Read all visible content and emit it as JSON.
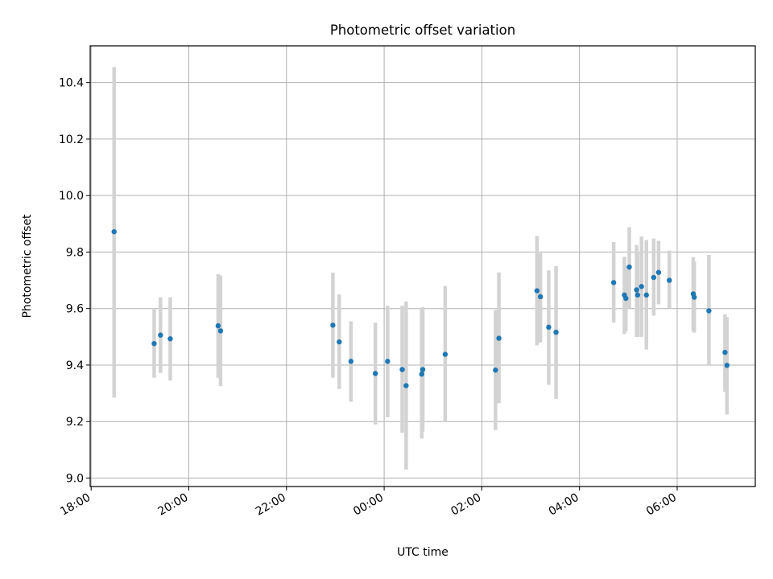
{
  "chart_data": {
    "type": "scatter",
    "title": "Photometric offset variation",
    "xlabel": "UTC time",
    "ylabel": "Photometric offset",
    "x_unit": "hours since 18:00 UTC",
    "xlim": [
      -0.02,
      13.6
    ],
    "ylim": [
      8.97,
      10.53
    ],
    "grid": true,
    "x_ticks": [
      {
        "v": 0,
        "label": "18:00"
      },
      {
        "v": 2,
        "label": "20:00"
      },
      {
        "v": 4,
        "label": "22:00"
      },
      {
        "v": 6,
        "label": "00:00"
      },
      {
        "v": 8,
        "label": "02:00"
      },
      {
        "v": 10,
        "label": "04:00"
      },
      {
        "v": 12,
        "label": "06:00"
      }
    ],
    "y_ticks": [
      {
        "v": 9.0,
        "label": "9.0"
      },
      {
        "v": 9.2,
        "label": "9.2"
      },
      {
        "v": 9.4,
        "label": "9.4"
      },
      {
        "v": 9.6,
        "label": "9.6"
      },
      {
        "v": 9.8,
        "label": "9.8"
      },
      {
        "v": 10.0,
        "label": "10.0"
      },
      {
        "v": 10.2,
        "label": "10.2"
      },
      {
        "v": 10.4,
        "label": "10.4"
      }
    ],
    "points": [
      {
        "time": "18:28",
        "x": 0.47,
        "y": 9.872,
        "lo": 9.285,
        "hi": 10.455
      },
      {
        "time": "19:18",
        "x": 1.29,
        "y": 9.476,
        "lo": 9.355,
        "hi": 9.597
      },
      {
        "time": "19:25",
        "x": 1.42,
        "y": 9.506,
        "lo": 9.372,
        "hi": 9.64
      },
      {
        "time": "19:37",
        "x": 1.62,
        "y": 9.493,
        "lo": 9.345,
        "hi": 9.64
      },
      {
        "time": "20:36",
        "x": 2.6,
        "y": 9.539,
        "lo": 9.355,
        "hi": 9.722
      },
      {
        "time": "20:39",
        "x": 2.65,
        "y": 9.521,
        "lo": 9.325,
        "hi": 9.717
      },
      {
        "time": "22:57",
        "x": 4.95,
        "y": 9.541,
        "lo": 9.355,
        "hi": 9.727
      },
      {
        "time": "23:05",
        "x": 5.08,
        "y": 9.482,
        "lo": 9.315,
        "hi": 9.65
      },
      {
        "time": "23:19",
        "x": 5.32,
        "y": 9.413,
        "lo": 9.27,
        "hi": 9.555
      },
      {
        "time": "23:49",
        "x": 5.82,
        "y": 9.37,
        "lo": 9.19,
        "hi": 9.55
      },
      {
        "time": "00:04",
        "x": 6.07,
        "y": 9.413,
        "lo": 9.215,
        "hi": 9.61
      },
      {
        "time": "00:22",
        "x": 6.37,
        "y": 9.384,
        "lo": 9.16,
        "hi": 9.61
      },
      {
        "time": "00:27",
        "x": 6.45,
        "y": 9.327,
        "lo": 9.03,
        "hi": 9.625
      },
      {
        "time": "00:46",
        "x": 6.77,
        "y": 9.368,
        "lo": 9.14,
        "hi": 9.6
      },
      {
        "time": "00:47",
        "x": 6.79,
        "y": 9.384,
        "lo": 9.165,
        "hi": 9.605
      },
      {
        "time": "01:15",
        "x": 7.25,
        "y": 9.438,
        "lo": 9.2,
        "hi": 9.68
      },
      {
        "time": "02:17",
        "x": 8.28,
        "y": 9.382,
        "lo": 9.17,
        "hi": 9.595
      },
      {
        "time": "02:21",
        "x": 8.35,
        "y": 9.495,
        "lo": 9.265,
        "hi": 9.728
      },
      {
        "time": "03:08",
        "x": 9.13,
        "y": 9.663,
        "lo": 9.47,
        "hi": 9.857
      },
      {
        "time": "03:12",
        "x": 9.2,
        "y": 9.642,
        "lo": 9.48,
        "hi": 9.797
      },
      {
        "time": "03:22",
        "x": 9.37,
        "y": 9.534,
        "lo": 9.33,
        "hi": 9.735
      },
      {
        "time": "03:31",
        "x": 9.52,
        "y": 9.516,
        "lo": 9.28,
        "hi": 9.75
      },
      {
        "time": "04:42",
        "x": 10.7,
        "y": 9.692,
        "lo": 9.55,
        "hi": 9.835
      },
      {
        "time": "04:55",
        "x": 10.92,
        "y": 9.648,
        "lo": 9.51,
        "hi": 9.783
      },
      {
        "time": "04:57",
        "x": 10.95,
        "y": 9.636,
        "lo": 9.52,
        "hi": 9.75
      },
      {
        "time": "05:01",
        "x": 11.02,
        "y": 9.747,
        "lo": 9.6,
        "hi": 9.888
      },
      {
        "time": "05:10",
        "x": 11.17,
        "y": 9.666,
        "lo": 9.5,
        "hi": 9.825
      },
      {
        "time": "05:11",
        "x": 11.19,
        "y": 9.648,
        "lo": 9.5,
        "hi": 9.8
      },
      {
        "time": "05:16",
        "x": 11.27,
        "y": 9.678,
        "lo": 9.5,
        "hi": 9.855
      },
      {
        "time": "05:22",
        "x": 11.37,
        "y": 9.648,
        "lo": 9.455,
        "hi": 9.843
      },
      {
        "time": "05:31",
        "x": 11.52,
        "y": 9.71,
        "lo": 9.575,
        "hi": 9.848
      },
      {
        "time": "05:37",
        "x": 11.62,
        "y": 9.728,
        "lo": 9.615,
        "hi": 9.84
      },
      {
        "time": "05:50",
        "x": 11.84,
        "y": 9.7,
        "lo": 9.6,
        "hi": 9.805
      },
      {
        "time": "06:20",
        "x": 12.33,
        "y": 9.652,
        "lo": 9.52,
        "hi": 9.782
      },
      {
        "time": "06:21",
        "x": 12.35,
        "y": 9.64,
        "lo": 9.515,
        "hi": 9.765
      },
      {
        "time": "06:39",
        "x": 12.65,
        "y": 9.592,
        "lo": 9.4,
        "hi": 9.79
      },
      {
        "time": "06:59",
        "x": 12.98,
        "y": 9.445,
        "lo": 9.305,
        "hi": 9.58
      },
      {
        "time": "07:01",
        "x": 13.02,
        "y": 9.399,
        "lo": 9.225,
        "hi": 9.57
      }
    ],
    "marker_color": "#1f77b4",
    "errorbar_color": "#d3d3d3"
  }
}
